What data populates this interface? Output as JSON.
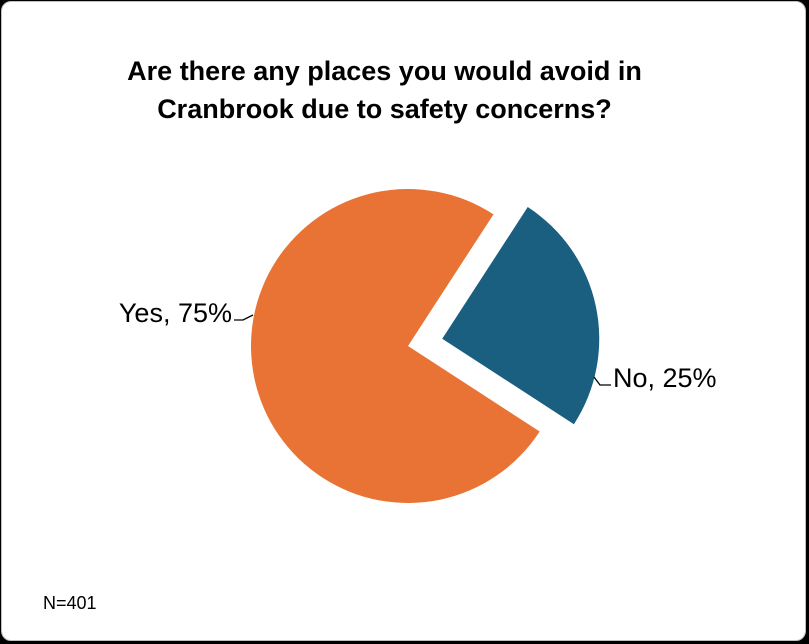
{
  "chart_data": {
    "type": "pie",
    "title_lines": [
      "Are there any places you would avoid in",
      "Cranbrook due to safety concerns?"
    ],
    "categories": [
      "Yes",
      "No"
    ],
    "values": [
      75,
      25
    ],
    "data_labels": [
      "Yes, 75%",
      "No, 25%"
    ],
    "colors": [
      "#E87334",
      "#1A5E80"
    ],
    "exploded": "No",
    "legend": "none",
    "note": "N=401"
  }
}
